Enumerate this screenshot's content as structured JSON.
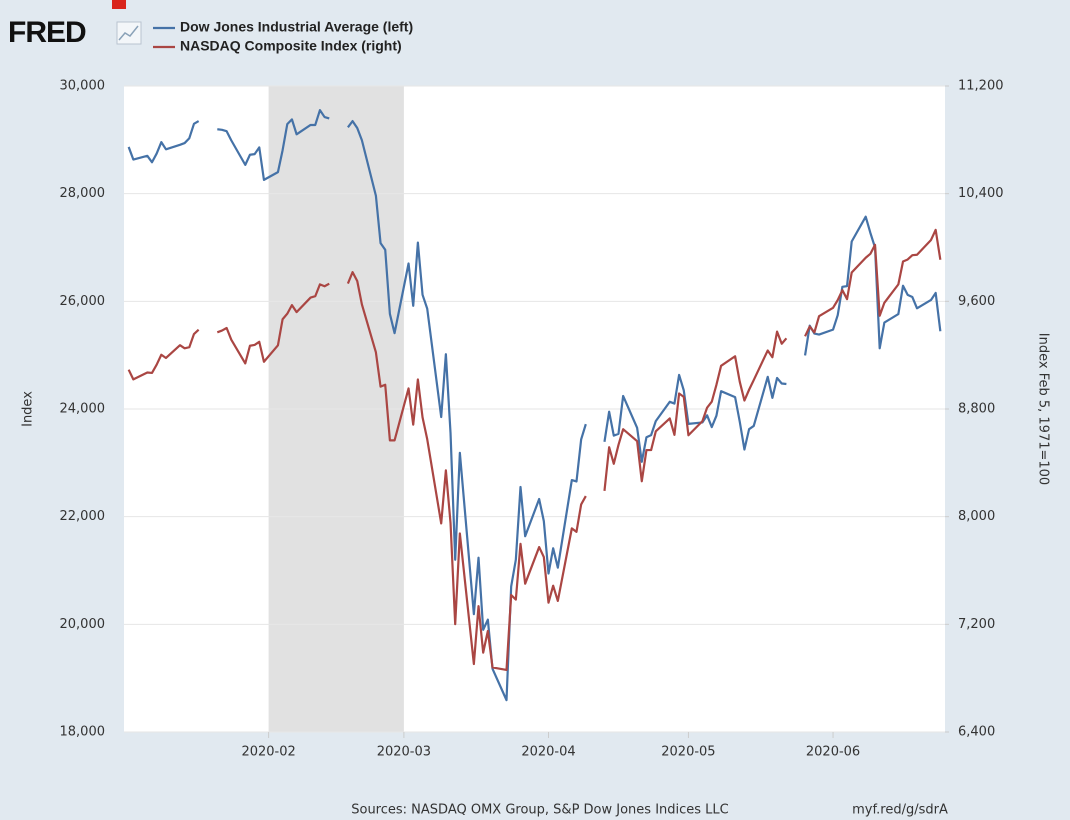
{
  "logo": "FRED",
  "chart_data": {
    "type": "line",
    "x": [
      "2020-01-02",
      "2020-01-03",
      "2020-01-06",
      "2020-01-07",
      "2020-01-08",
      "2020-01-09",
      "2020-01-10",
      "2020-01-13",
      "2020-01-14",
      "2020-01-15",
      "2020-01-16",
      "2020-01-17",
      "2020-01-20",
      "2020-01-21",
      "2020-01-22",
      "2020-01-23",
      "2020-01-24",
      "2020-01-27",
      "2020-01-28",
      "2020-01-29",
      "2020-01-30",
      "2020-01-31",
      "2020-02-03",
      "2020-02-04",
      "2020-02-05",
      "2020-02-06",
      "2020-02-07",
      "2020-02-10",
      "2020-02-11",
      "2020-02-12",
      "2020-02-13",
      "2020-02-14",
      "2020-02-17",
      "2020-02-18",
      "2020-02-19",
      "2020-02-20",
      "2020-02-21",
      "2020-02-24",
      "2020-02-25",
      "2020-02-26",
      "2020-02-27",
      "2020-02-28",
      "2020-03-02",
      "2020-03-03",
      "2020-03-04",
      "2020-03-05",
      "2020-03-06",
      "2020-03-09",
      "2020-03-10",
      "2020-03-11",
      "2020-03-12",
      "2020-03-13",
      "2020-03-16",
      "2020-03-17",
      "2020-03-18",
      "2020-03-19",
      "2020-03-20",
      "2020-03-23",
      "2020-03-24",
      "2020-03-25",
      "2020-03-26",
      "2020-03-27",
      "2020-03-30",
      "2020-03-31",
      "2020-04-01",
      "2020-04-02",
      "2020-04-03",
      "2020-04-06",
      "2020-04-07",
      "2020-04-08",
      "2020-04-09",
      "2020-04-10",
      "2020-04-13",
      "2020-04-14",
      "2020-04-15",
      "2020-04-16",
      "2020-04-17",
      "2020-04-20",
      "2020-04-21",
      "2020-04-22",
      "2020-04-23",
      "2020-04-24",
      "2020-04-27",
      "2020-04-28",
      "2020-04-29",
      "2020-04-30",
      "2020-05-01",
      "2020-05-04",
      "2020-05-05",
      "2020-05-06",
      "2020-05-07",
      "2020-05-08",
      "2020-05-11",
      "2020-05-12",
      "2020-05-13",
      "2020-05-14",
      "2020-05-15",
      "2020-05-18",
      "2020-05-19",
      "2020-05-20",
      "2020-05-21",
      "2020-05-22",
      "2020-05-25",
      "2020-05-26",
      "2020-05-27",
      "2020-05-28",
      "2020-05-29",
      "2020-06-01",
      "2020-06-02",
      "2020-06-03",
      "2020-06-04",
      "2020-06-05",
      "2020-06-08",
      "2020-06-09",
      "2020-06-10",
      "2020-06-11",
      "2020-06-12",
      "2020-06-15",
      "2020-06-16",
      "2020-06-17",
      "2020-06-18",
      "2020-06-19",
      "2020-06-22",
      "2020-06-23",
      "2020-06-24"
    ],
    "series": [
      {
        "name": "Dow Jones Industrial Average (left)",
        "color": "#4572a7",
        "axis": "y",
        "values": [
          28868,
          28634,
          28703,
          28583,
          28745,
          28957,
          28824,
          28907,
          28940,
          29030,
          29298,
          29348,
          null,
          29196,
          29186,
          29160,
          28990,
          28535,
          28723,
          28734,
          28859,
          28256,
          28400,
          28807,
          29291,
          29380,
          29103,
          29277,
          29276,
          29551,
          29423,
          29398,
          null,
          29232,
          29348,
          29219,
          28992,
          27961,
          27081,
          26957,
          25766,
          25409,
          26703,
          25917,
          27091,
          26121,
          25865,
          23851,
          25018,
          23553,
          21200,
          23186,
          20189,
          21237,
          19899,
          20087,
          19174,
          18592,
          20705,
          21200,
          22552,
          21637,
          22327,
          21917,
          20944,
          21413,
          21053,
          22680,
          22654,
          23434,
          23719,
          null,
          23390,
          23950,
          23505,
          23538,
          24242,
          23650,
          23019,
          23475,
          23515,
          23775,
          24134,
          24101,
          24633,
          24346,
          23724,
          23750,
          23883,
          23664,
          23875,
          24331,
          24221,
          23765,
          23248,
          23625,
          23685,
          24597,
          24207,
          24576,
          24474,
          24465,
          null,
          24995,
          25548,
          25401,
          25383,
          25475,
          25742,
          26270,
          26282,
          27111,
          27572,
          27272,
          27000,
          25128,
          25606,
          25763,
          26290,
          26120,
          26080,
          25871,
          26025,
          26156,
          25445
        ]
      },
      {
        "name": "NASDAQ Composite Index (right)",
        "color": "#aa4643",
        "axis": "y2",
        "values": [
          9092,
          9020,
          9071,
          9068,
          9129,
          9203,
          9179,
          9274,
          9251,
          9259,
          9357,
          9389,
          null,
          9370,
          9383,
          9402,
          9315,
          9139,
          9270,
          9276,
          9299,
          9151,
          9273,
          9467,
          9508,
          9572,
          9520,
          9628,
          9638,
          9726,
          9712,
          9731,
          null,
          9732,
          9817,
          9751,
          9577,
          9221,
          8966,
          8980,
          8567,
          8567,
          8953,
          8684,
          9019,
          8738,
          8576,
          7950,
          8344,
          7953,
          7201,
          7875,
          6905,
          7335,
          6990,
          7151,
          6880,
          6861,
          7418,
          7384,
          7798,
          7502,
          7774,
          7700,
          7361,
          7487,
          7374,
          7913,
          7887,
          8091,
          8153,
          null,
          8192,
          8516,
          8393,
          8533,
          8650,
          8561,
          8263,
          8495,
          8495,
          8634,
          8730,
          8608,
          8915,
          8890,
          8605,
          8710,
          8810,
          8854,
          8980,
          9121,
          9192,
          9003,
          8863,
          8943,
          9015,
          9235,
          9185,
          9375,
          9285,
          9325,
          null,
          9340,
          9413,
          9369,
          9490,
          9552,
          9609,
          9683,
          9616,
          9814,
          9924,
          9953,
          10020,
          9493,
          9589,
          9726,
          9896,
          9911,
          9943,
          9946,
          10056,
          10131,
          9909
        ]
      }
    ],
    "xlim": [
      "2020-01-01",
      "2020-06-25"
    ],
    "xticks": [
      {
        "value": "2020-02-01",
        "label": "2020-02"
      },
      {
        "value": "2020-03-01",
        "label": "2020-03"
      },
      {
        "value": "2020-04-01",
        "label": "2020-04"
      },
      {
        "value": "2020-05-01",
        "label": "2020-05"
      },
      {
        "value": "2020-06-01",
        "label": "2020-06"
      }
    ],
    "ylim": [
      18000,
      30000
    ],
    "yticks": [
      {
        "value": 18000,
        "label": "18,000"
      },
      {
        "value": 20000,
        "label": "20,000"
      },
      {
        "value": 22000,
        "label": "22,000"
      },
      {
        "value": 24000,
        "label": "24,000"
      },
      {
        "value": 26000,
        "label": "26,000"
      },
      {
        "value": 28000,
        "label": "28,000"
      },
      {
        "value": 30000,
        "label": "30,000"
      }
    ],
    "y2lim": [
      6400,
      11200
    ],
    "y2ticks": [
      {
        "value": 6400,
        "label": "6,400"
      },
      {
        "value": 7200,
        "label": "7,200"
      },
      {
        "value": 8000,
        "label": "8,000"
      },
      {
        "value": 8800,
        "label": "8,800"
      },
      {
        "value": 9600,
        "label": "9,600"
      },
      {
        "value": 10400,
        "label": "10,400"
      },
      {
        "value": 11200,
        "label": "11,200"
      }
    ],
    "ylabel": "Index",
    "y2label": "Index Feb 5, 1971=100",
    "shaded": [
      "2020-02-01",
      "2020-03-01"
    ],
    "grid": true,
    "legend": "top-left",
    "source": "Sources: NASDAQ OMX Group, S&P Dow Jones Indices LLC",
    "link": "myf.red/g/sdrA"
  }
}
